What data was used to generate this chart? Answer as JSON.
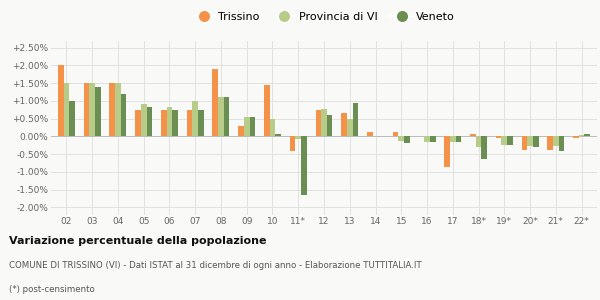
{
  "years": [
    "02",
    "03",
    "04",
    "05",
    "06",
    "07",
    "08",
    "09",
    "10",
    "11*",
    "12",
    "13",
    "14",
    "15",
    "16",
    "17",
    "18*",
    "19*",
    "20*",
    "21*",
    "22*"
  ],
  "trissino": [
    2.0,
    1.5,
    1.5,
    0.75,
    0.75,
    0.75,
    1.9,
    0.3,
    1.45,
    -0.4,
    0.75,
    0.65,
    0.12,
    0.12,
    0.02,
    -0.85,
    0.08,
    -0.05,
    -0.38,
    -0.38,
    -0.05
  ],
  "provincia_vi": [
    1.5,
    1.5,
    1.5,
    0.9,
    0.82,
    1.0,
    1.1,
    0.55,
    0.5,
    -0.08,
    0.78,
    0.5,
    0.0,
    -0.12,
    -0.15,
    -0.15,
    -0.3,
    -0.25,
    -0.28,
    -0.28,
    0.05
  ],
  "veneto": [
    1.0,
    1.4,
    1.2,
    0.82,
    0.75,
    0.75,
    1.1,
    0.55,
    0.08,
    -1.65,
    0.6,
    0.95,
    0.0,
    -0.2,
    -0.15,
    -0.15,
    -0.65,
    -0.25,
    -0.3,
    -0.4,
    0.07
  ],
  "color_trissino": "#f5924a",
  "color_provincia": "#b8cc8a",
  "color_veneto": "#6b8f52",
  "title_bold": "Variazione percentuale della popolazione",
  "subtitle1": "COMUNE DI TRISSINO (VI) - Dati ISTAT al 31 dicembre di ogni anno - Elaborazione TUTTITALIA.IT",
  "subtitle2": "(*) post-censimento",
  "ylim": [
    -2.2,
    2.7
  ],
  "yticks": [
    -2.0,
    -1.5,
    -1.0,
    -0.5,
    0.0,
    0.5,
    1.0,
    1.5,
    2.0,
    2.5
  ],
  "ytick_labels": [
    "-2.00%",
    "-1.50%",
    "-1.00%",
    "-0.50%",
    "0.00%",
    "+0.50%",
    "+1.00%",
    "+1.50%",
    "+2.00%",
    "+2.50%"
  ],
  "background_color": "#f9f9f7",
  "grid_color": "#dddddd",
  "bar_width": 0.22
}
